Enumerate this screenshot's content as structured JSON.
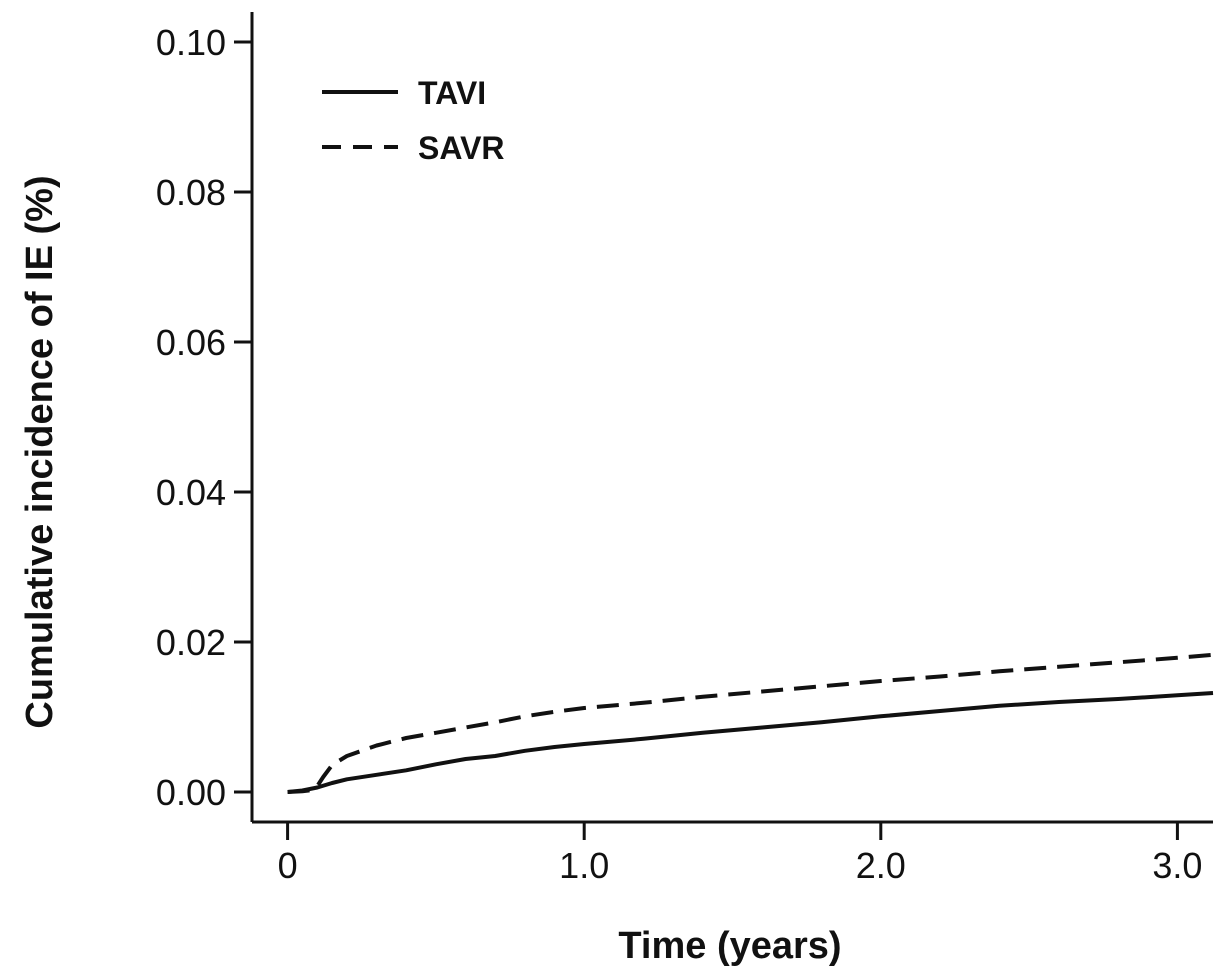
{
  "chart_data": {
    "type": "line",
    "title": "",
    "xlabel": "Time (years)",
    "ylabel": "Cumulative incidence of IE (%)",
    "xlim": [
      -0.12,
      3.12
    ],
    "ylim": [
      -0.004,
      0.104
    ],
    "x_ticks": [
      {
        "value": 0,
        "label": "0"
      },
      {
        "value": 1,
        "label": "1.0"
      },
      {
        "value": 2,
        "label": "2.0"
      },
      {
        "value": 3,
        "label": "3.0"
      }
    ],
    "y_ticks": [
      {
        "value": 0,
        "label": "0.00"
      },
      {
        "value": 0.02,
        "label": "0.02"
      },
      {
        "value": 0.04,
        "label": "0.04"
      },
      {
        "value": 0.06,
        "label": "0.06"
      },
      {
        "value": 0.08,
        "label": "0.08"
      },
      {
        "value": 0.1,
        "label": "0.10"
      }
    ],
    "grid": false,
    "legend_position": "top-left",
    "series": [
      {
        "name": "TAVI",
        "line_style": "solid",
        "color": "#111111",
        "points": [
          [
            0,
            0
          ],
          [
            0.05,
            0.0002
          ],
          [
            0.1,
            0.0006
          ],
          [
            0.15,
            0.0012
          ],
          [
            0.2,
            0.0017
          ],
          [
            0.3,
            0.0023
          ],
          [
            0.4,
            0.0029
          ],
          [
            0.5,
            0.0037
          ],
          [
            0.6,
            0.0044
          ],
          [
            0.7,
            0.0048
          ],
          [
            0.8,
            0.0055
          ],
          [
            0.9,
            0.006
          ],
          [
            1.0,
            0.0064
          ],
          [
            1.2,
            0.0071
          ],
          [
            1.4,
            0.0079
          ],
          [
            1.6,
            0.0086
          ],
          [
            1.8,
            0.0093
          ],
          [
            2.0,
            0.0101
          ],
          [
            2.2,
            0.0108
          ],
          [
            2.4,
            0.0115
          ],
          [
            2.6,
            0.012
          ],
          [
            2.8,
            0.0124
          ],
          [
            3.0,
            0.0129
          ],
          [
            3.12,
            0.0132
          ]
        ]
      },
      {
        "name": "SAVR",
        "line_style": "dashed",
        "color": "#111111",
        "points": [
          [
            0,
            0
          ],
          [
            0.05,
            0.0001
          ],
          [
            0.09,
            0.0003
          ],
          [
            0.1,
            0.0008
          ],
          [
            0.12,
            0.002
          ],
          [
            0.15,
            0.0036
          ],
          [
            0.2,
            0.0048
          ],
          [
            0.3,
            0.0062
          ],
          [
            0.4,
            0.0072
          ],
          [
            0.5,
            0.0079
          ],
          [
            0.6,
            0.0086
          ],
          [
            0.7,
            0.0093
          ],
          [
            0.8,
            0.0101
          ],
          [
            0.9,
            0.0107
          ],
          [
            1.0,
            0.0112
          ],
          [
            1.2,
            0.0119
          ],
          [
            1.4,
            0.0127
          ],
          [
            1.6,
            0.0134
          ],
          [
            1.8,
            0.0141
          ],
          [
            2.0,
            0.0148
          ],
          [
            2.2,
            0.0154
          ],
          [
            2.4,
            0.0161
          ],
          [
            2.6,
            0.0167
          ],
          [
            2.8,
            0.0173
          ],
          [
            3.0,
            0.0179
          ],
          [
            3.12,
            0.0183
          ]
        ]
      }
    ]
  }
}
